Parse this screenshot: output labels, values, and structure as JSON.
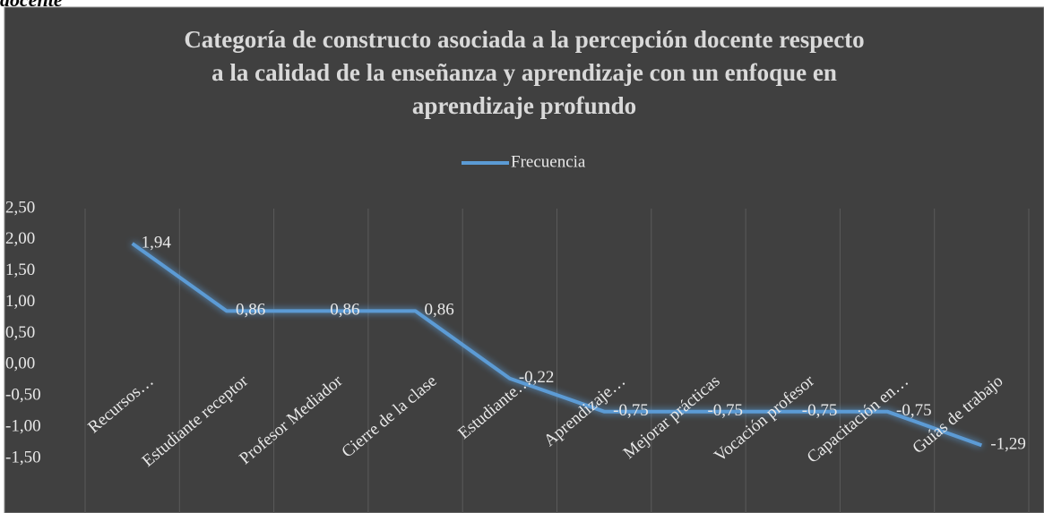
{
  "caption": "docente",
  "chart_data": {
    "type": "line",
    "title": [
      "Categoría de constructo asociada a la percepción docente respecto",
      "a la calidad de la enseñanza y aprendizaje con un enfoque en",
      "aprendizaje profundo"
    ],
    "categories": [
      "Recursos…",
      "Estudiante receptor",
      "Profesor Mediador",
      "Cierre de la clase",
      "Estudiante…",
      "Aprendizaje…",
      "Mejorar prácticas",
      "Vocación profesor",
      "Capacitación en…",
      "Guías de trabajo"
    ],
    "series": [
      {
        "name": "Frecuencia",
        "color": "#5b9bd5",
        "values": [
          1.94,
          0.86,
          0.86,
          0.86,
          -0.22,
          -0.75,
          -0.75,
          -0.75,
          -0.75,
          -1.29
        ],
        "value_labels": [
          "1,94",
          "0,86",
          "0,86",
          "0,86",
          "-0,22",
          "-0,75",
          "-0,75",
          "-0,75",
          "-0,75",
          "-1,29"
        ]
      }
    ],
    "ylim": [
      -1.5,
      2.5
    ],
    "yticks": [
      {
        "value": 2.5,
        "label": "2,50"
      },
      {
        "value": 2,
        "label": "2,00"
      },
      {
        "value": 1.5,
        "label": "1,50"
      },
      {
        "value": 1,
        "label": "1,00"
      },
      {
        "value": 0.5,
        "label": "0,50"
      },
      {
        "value": 0,
        "label": "0,00"
      },
      {
        "value": -0.5,
        "label": "-0,50"
      },
      {
        "value": -1,
        "label": "-1,00"
      },
      {
        "value": -1.5,
        "label": "-1,50"
      }
    ],
    "legend": "top"
  }
}
